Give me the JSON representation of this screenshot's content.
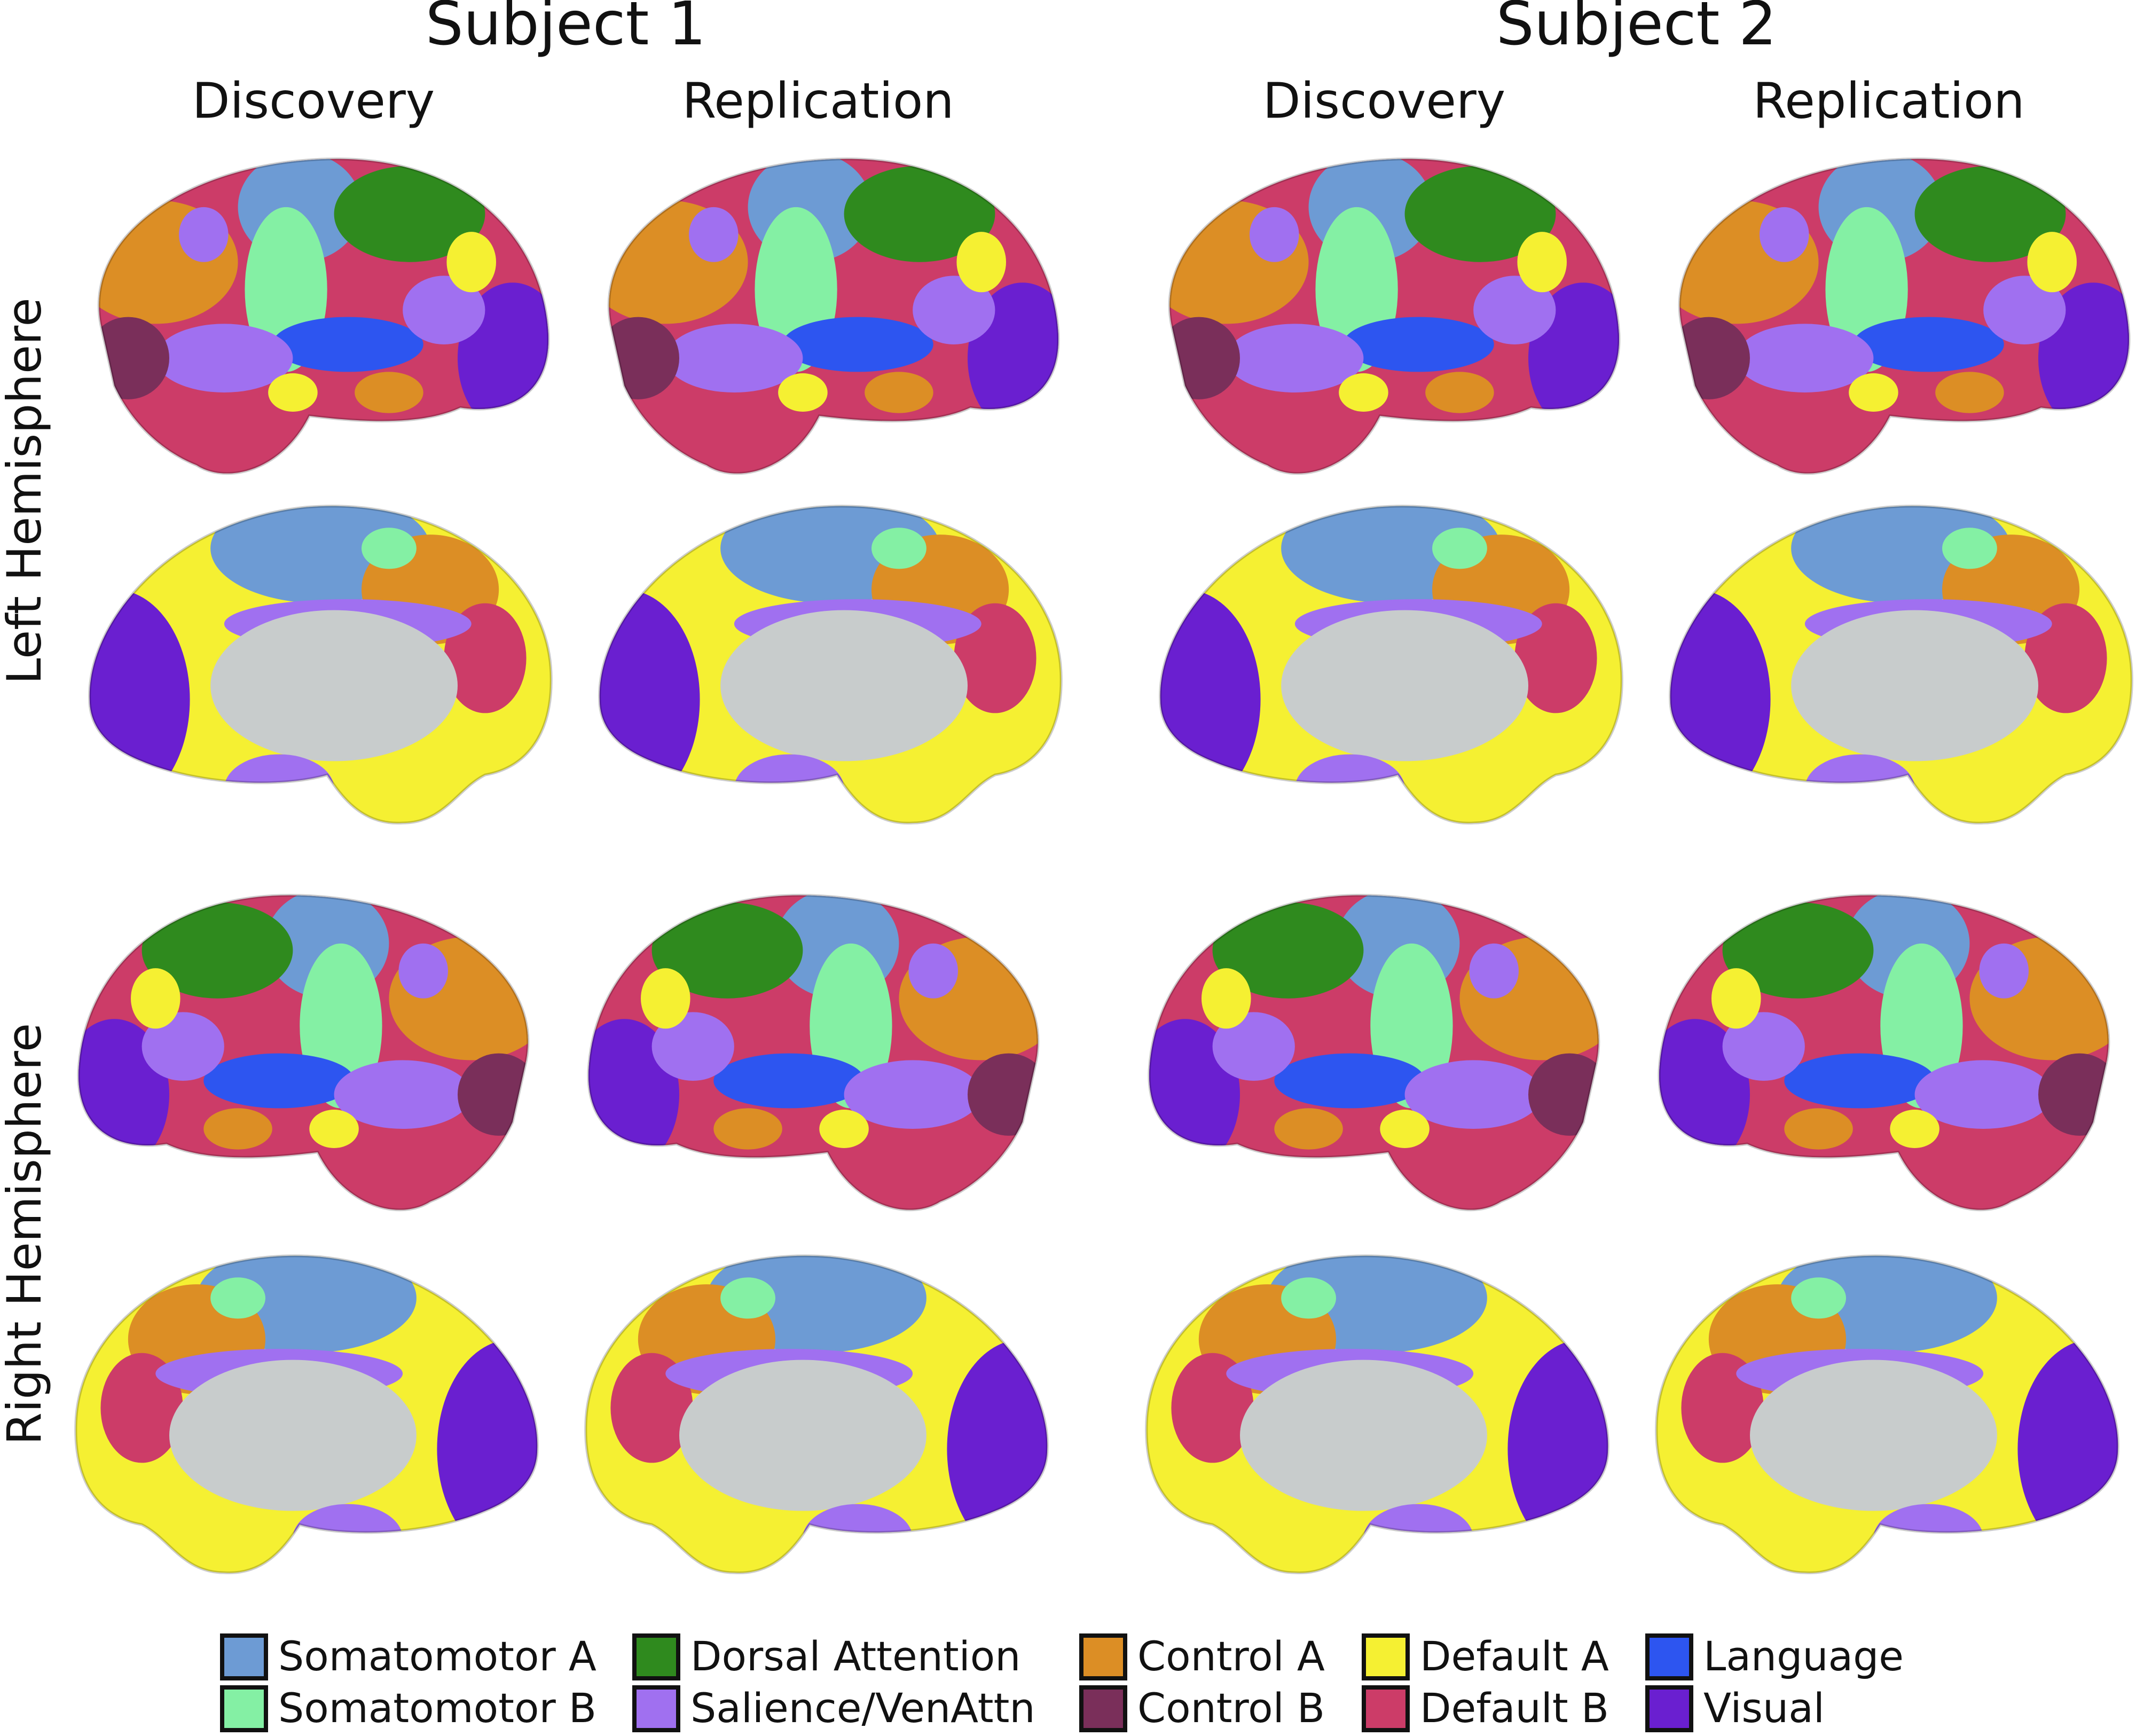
{
  "subjects": [
    {
      "title": "Subject 1",
      "columns": [
        "Discovery",
        "Replication"
      ]
    },
    {
      "title": "Subject 2",
      "columns": [
        "Discovery",
        "Replication"
      ]
    }
  ],
  "rows": [
    "Left Hemisphere",
    "Right Hemisphere"
  ],
  "legend": [
    {
      "label": "Somatomotor A",
      "color": "#6d9bd4"
    },
    {
      "label": "Somatomotor B",
      "color": "#84f0a4"
    },
    {
      "label": "Dorsal Attention",
      "color": "#2f8a1e"
    },
    {
      "label": "Salience/VenAttn",
      "color": "#a070f0"
    },
    {
      "label": "Control A",
      "color": "#dc8e25"
    },
    {
      "label": "Control B",
      "color": "#7a2f5a"
    },
    {
      "label": "Default A",
      "color": "#f5f032"
    },
    {
      "label": "Default B",
      "color": "#cc3c68"
    },
    {
      "label": "Language",
      "color": "#2d55f0"
    },
    {
      "label": "Visual",
      "color": "#6a1fd0"
    }
  ]
}
